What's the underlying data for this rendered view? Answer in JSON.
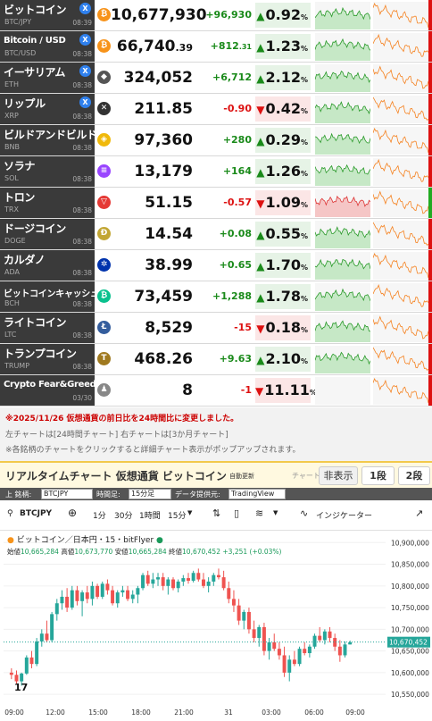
{
  "rows": [
    {
      "name": "ビットコイン",
      "symbol": "BTC/JPY",
      "time": "08:39",
      "x": true,
      "coin_icon": "bitcoin-icon",
      "coin_color": "#f7931a",
      "coin_glyph": "₿",
      "price": "10,677,930",
      "price_dec": "",
      "change": "+96,930",
      "change_dec": "",
      "dir": "up",
      "pct": "0.92",
      "spark1": "up",
      "spark2": "dn",
      "bar_color": "#d11"
    },
    {
      "name": "Bitcoin / USD",
      "symbol": "BTC/USD",
      "time": "08:38",
      "x": true,
      "coin_icon": "bitcoin-icon",
      "coin_color": "#f7931a",
      "coin_glyph": "₿",
      "price": "66,740",
      "price_dec": ".39",
      "change": "+812",
      "change_dec": ".31",
      "dir": "up",
      "pct": "1.23",
      "spark1": "up",
      "spark2": "dn",
      "bar_color": "#d11"
    },
    {
      "name": "イーサリアム",
      "symbol": "ETH",
      "time": "08:38",
      "x": true,
      "coin_icon": "ethereum-icon",
      "coin_color": "#555",
      "coin_glyph": "◆",
      "price": "324,052",
      "price_dec": "",
      "change": "+6,712",
      "change_dec": "",
      "dir": "up",
      "pct": "2.12",
      "spark1": "up",
      "spark2": "dn",
      "bar_color": "#d11"
    },
    {
      "name": "リップル",
      "symbol": "XRP",
      "time": "08:38",
      "x": true,
      "coin_icon": "xrp-icon",
      "coin_color": "#333",
      "coin_glyph": "✕",
      "price": "211.85",
      "price_dec": "",
      "change": "-0.90",
      "change_dec": "",
      "dir": "dn",
      "pct": "0.42",
      "spark1": "up",
      "spark2": "dn",
      "bar_color": "#d11"
    },
    {
      "name": "ビルドアンドビルド",
      "symbol": "BNB",
      "time": "08:38",
      "x": false,
      "coin_icon": "bnb-icon",
      "coin_color": "#f0b90b",
      "coin_glyph": "◈",
      "price": "97,360",
      "price_dec": "",
      "change": "+280",
      "change_dec": "",
      "dir": "up",
      "pct": "0.29",
      "spark1": "up",
      "spark2": "dn",
      "bar_color": "#d11"
    },
    {
      "name": "ソラナ",
      "symbol": "SOL",
      "time": "08:38",
      "x": false,
      "coin_icon": "solana-icon",
      "coin_color": "#9945ff",
      "coin_glyph": "≡",
      "price": "13,179",
      "price_dec": "",
      "change": "+164",
      "change_dec": "",
      "dir": "up",
      "pct": "1.26",
      "spark1": "up",
      "spark2": "dn",
      "bar_color": "#d11"
    },
    {
      "name": "トロン",
      "symbol": "TRX",
      "time": "08:38",
      "x": false,
      "coin_icon": "tron-icon",
      "coin_color": "#e53935",
      "coin_glyph": "▽",
      "price": "51.15",
      "price_dec": "",
      "change": "-0.57",
      "change_dec": "",
      "dir": "dn",
      "pct": "1.09",
      "spark1": "dn",
      "spark2": "dn",
      "bar_color": "#2a2"
    },
    {
      "name": "ドージコイン",
      "symbol": "DOGE",
      "time": "08:38",
      "x": false,
      "coin_icon": "dogecoin-icon",
      "coin_color": "#c2a633",
      "coin_glyph": "Ð",
      "price": "14.54",
      "price_dec": "",
      "change": "+0.08",
      "change_dec": "",
      "dir": "up",
      "pct": "0.55",
      "spark1": "up",
      "spark2": "dn",
      "bar_color": "#d11"
    },
    {
      "name": "カルダノ",
      "symbol": "ADA",
      "time": "08:38",
      "x": false,
      "coin_icon": "cardano-icon",
      "coin_color": "#0033ad",
      "coin_glyph": "✲",
      "price": "38.99",
      "price_dec": "",
      "change": "+0.65",
      "change_dec": "",
      "dir": "up",
      "pct": "1.70",
      "spark1": "up",
      "spark2": "dn",
      "bar_color": "#d11"
    },
    {
      "name": "ビットコインキャッシュ",
      "symbol": "BCH",
      "time": "08:38",
      "x": false,
      "coin_icon": "bitcoin-cash-icon",
      "coin_color": "#0ac18e",
      "coin_glyph": "₿",
      "price": "73,459",
      "price_dec": "",
      "change": "+1,288",
      "change_dec": "",
      "dir": "up",
      "pct": "1.78",
      "spark1": "up",
      "spark2": "dn",
      "bar_color": "#d11"
    },
    {
      "name": "ライトコイン",
      "symbol": "LTC",
      "time": "08:38",
      "x": false,
      "coin_icon": "litecoin-icon",
      "coin_color": "#345d9d",
      "coin_glyph": "Ł",
      "price": "8,529",
      "price_dec": "",
      "change": "-15",
      "change_dec": "",
      "dir": "dn",
      "pct": "0.18",
      "spark1": "up",
      "spark2": "dn",
      "bar_color": "#d11"
    },
    {
      "name": "トランプコイン",
      "symbol": "TRUMP",
      "time": "08:38",
      "x": false,
      "coin_icon": "trump-coin-icon",
      "coin_color": "#a07a20",
      "coin_glyph": "T",
      "price": "468.26",
      "price_dec": "",
      "change": "+9.63",
      "change_dec": "",
      "dir": "up",
      "pct": "2.10",
      "spark1": "up",
      "spark2": "dn",
      "bar_color": "#d11"
    },
    {
      "name": "Crypto Fear&Greed Index",
      "symbol": "",
      "time": "03/30",
      "x": false,
      "coin_icon": "fear-greed-icon",
      "coin_color": "#888",
      "coin_glyph": "♟",
      "price": "8",
      "price_dec": "",
      "change": "-1",
      "change_dec": "",
      "dir": "dn",
      "pct": "11.11",
      "spark1": "none",
      "spark2": "dn",
      "bar_color": "#d11"
    }
  ],
  "notes": {
    "note1": "※2025/11/26 仮想通貨の前日比を24時間比に変更しました。",
    "note2": "左チャートは[24時間チャート] 右チャートは[3か月チャート]",
    "note3": "※各銘柄のチャートをクリックすると詳細チャート表示がポップアップされます。"
  },
  "realtime": {
    "title": "リアルタイムチャート 仮想通貨 ビットコイン",
    "auto": "自動更新",
    "chart_label": "チャート:",
    "hide": "非表示",
    "one": "1段",
    "two": "2段"
  },
  "selector": {
    "symbol_label": "上 銘柄:",
    "symbol_value": "BTCJPY",
    "tf_label": "時間足:",
    "tf_value": "15分足",
    "provider_label": "データ提供元:",
    "provider_value": "TradingView"
  },
  "tv": {
    "symbol": "BTCJPY",
    "tf_1m": "1分",
    "tf_30m": "30分",
    "tf_1h": "1時間",
    "tf_15m": "15分",
    "indicators": "インジケーター",
    "legend_title": "ビットコイン／日本円・15・bitFlyer",
    "open_label": "始値",
    "open": "10,665,284",
    "high_label": "高値",
    "high": "10,673,770",
    "low_label": "安値",
    "low": "10,665,284",
    "close_label": "終値",
    "close": "10,670,452",
    "chg": "+3,251 (+0.03%)",
    "last_price": "10,670,452",
    "logo": "17"
  },
  "chart_data": {
    "type": "candlestick",
    "y_ticks": [
      "10,900,000",
      "10,850,000",
      "10,800,000",
      "10,750,000",
      "10,700,000",
      "10,650,000",
      "10,600,000",
      "10,550,000"
    ],
    "ylim": [
      10540000,
      10915000
    ],
    "x_ticks": [
      "09:00",
      "12:00",
      "15:00",
      "18:00",
      "21:00",
      "31",
      "03:00",
      "06:00",
      "09:00"
    ],
    "colors": {
      "up": "#26a69a",
      "down": "#ef5350"
    },
    "candles": [
      [
        10600000,
        10610000,
        10585000,
        10595000
      ],
      [
        10595000,
        10605000,
        10575000,
        10580000
      ],
      [
        10580000,
        10600000,
        10570000,
        10598000
      ],
      [
        10598000,
        10640000,
        10595000,
        10635000
      ],
      [
        10635000,
        10650000,
        10610000,
        10620000
      ],
      [
        10620000,
        10680000,
        10615000,
        10672000
      ],
      [
        10672000,
        10700000,
        10660000,
        10690000
      ],
      [
        10690000,
        10720000,
        10670000,
        10675000
      ],
      [
        10675000,
        10740000,
        10670000,
        10735000
      ],
      [
        10735000,
        10770000,
        10720000,
        10760000
      ],
      [
        10760000,
        10790000,
        10745000,
        10775000
      ],
      [
        10775000,
        10795000,
        10740000,
        10750000
      ],
      [
        10750000,
        10800000,
        10745000,
        10790000
      ],
      [
        10790000,
        10800000,
        10755000,
        10765000
      ],
      [
        10765000,
        10790000,
        10730000,
        10785000
      ],
      [
        10785000,
        10800000,
        10760000,
        10770000
      ],
      [
        10770000,
        10810000,
        10755000,
        10800000
      ],
      [
        10800000,
        10805000,
        10770000,
        10775000
      ],
      [
        10775000,
        10810000,
        10770000,
        10805000
      ],
      [
        10805000,
        10815000,
        10780000,
        10790000
      ],
      [
        10790000,
        10800000,
        10755000,
        10760000
      ],
      [
        10760000,
        10790000,
        10750000,
        10785000
      ],
      [
        10785000,
        10800000,
        10775000,
        10790000
      ],
      [
        10790000,
        10800000,
        10765000,
        10770000
      ],
      [
        10770000,
        10790000,
        10760000,
        10780000
      ],
      [
        10780000,
        10800000,
        10760000,
        10795000
      ],
      [
        10795000,
        10830000,
        10790000,
        10825000
      ],
      [
        10825000,
        10835000,
        10800000,
        10805000
      ],
      [
        10805000,
        10830000,
        10795000,
        10815000
      ],
      [
        10815000,
        10830000,
        10800000,
        10820000
      ],
      [
        10820000,
        10830000,
        10790000,
        10800000
      ],
      [
        10800000,
        10820000,
        10780000,
        10815000
      ],
      [
        10815000,
        10820000,
        10790000,
        10795000
      ],
      [
        10795000,
        10815000,
        10785000,
        10810000
      ],
      [
        10810000,
        10825000,
        10800000,
        10818000
      ],
      [
        10818000,
        10830000,
        10805000,
        10812000
      ],
      [
        10812000,
        10835000,
        10808000,
        10830000
      ],
      [
        10830000,
        10840000,
        10810000,
        10815000
      ],
      [
        10815000,
        10830000,
        10795000,
        10800000
      ],
      [
        10800000,
        10820000,
        10785000,
        10810000
      ],
      [
        10810000,
        10830000,
        10800000,
        10825000
      ],
      [
        10825000,
        10840000,
        10815000,
        10820000
      ],
      [
        10820000,
        10835000,
        10790000,
        10795000
      ],
      [
        10795000,
        10810000,
        10760000,
        10770000
      ],
      [
        10770000,
        10790000,
        10740000,
        10755000
      ],
      [
        10755000,
        10770000,
        10710000,
        10720000
      ],
      [
        10720000,
        10745000,
        10700000,
        10740000
      ],
      [
        10740000,
        10750000,
        10690000,
        10700000
      ],
      [
        10700000,
        10720000,
        10670000,
        10680000
      ],
      [
        10680000,
        10710000,
        10660000,
        10705000
      ],
      [
        10705000,
        10715000,
        10640000,
        10650000
      ],
      [
        10650000,
        10680000,
        10630000,
        10670000
      ],
      [
        10670000,
        10690000,
        10650000,
        10655000
      ],
      [
        10655000,
        10670000,
        10630000,
        10640000
      ],
      [
        10640000,
        10660000,
        10590000,
        10600000
      ],
      [
        10600000,
        10640000,
        10580000,
        10630000
      ],
      [
        10630000,
        10650000,
        10615000,
        10620000
      ],
      [
        10620000,
        10660000,
        10615000,
        10655000
      ],
      [
        10655000,
        10670000,
        10640000,
        10645000
      ],
      [
        10645000,
        10665000,
        10635000,
        10660000
      ],
      [
        10660000,
        10690000,
        10655000,
        10685000
      ],
      [
        10685000,
        10705000,
        10670000,
        10675000
      ],
      [
        10675000,
        10700000,
        10665000,
        10695000
      ],
      [
        10695000,
        10705000,
        10670000,
        10680000
      ],
      [
        10680000,
        10690000,
        10650000,
        10660000
      ],
      [
        10660000,
        10675000,
        10625000,
        10640000
      ],
      [
        10640000,
        10672000,
        10635000,
        10665000
      ],
      [
        10665000,
        10674000,
        10665000,
        10670000
      ]
    ]
  }
}
